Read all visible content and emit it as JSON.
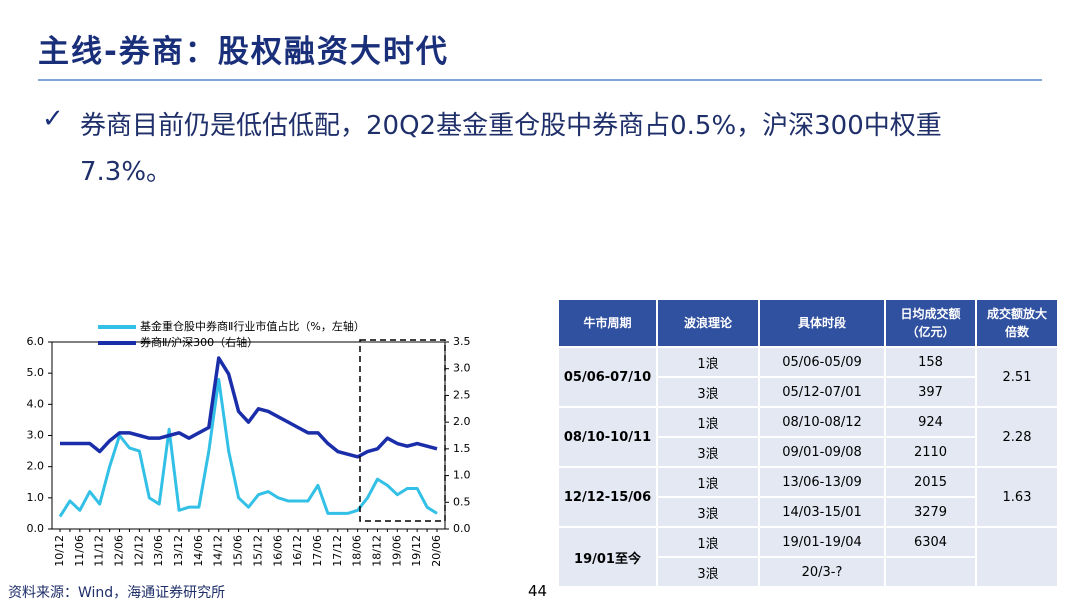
{
  "header": {
    "title": "主线-券商：股权融资大时代"
  },
  "bullet": {
    "text": "券商目前仍是低估低配，20Q2基金重仓股中券商占0.5%，沪深300中权重7.3%。"
  },
  "chart_data": {
    "type": "line",
    "categories": [
      "10/12",
      null,
      "11/06",
      null,
      "11/12",
      null,
      "12/06",
      null,
      "12/12",
      null,
      "13/06",
      null,
      "13/12",
      null,
      "14/06",
      null,
      "14/12",
      null,
      "15/06",
      null,
      "15/12",
      null,
      "16/06",
      null,
      "16/12",
      null,
      "17/06",
      null,
      "17/12",
      null,
      "18/06",
      null,
      "18/12",
      null,
      "19/06",
      null,
      "19/12",
      null,
      "20/06"
    ],
    "series": [
      {
        "name": "基金重仓股中券商Ⅱ行业市值占比（%，左轴）",
        "color": "#33c0e6",
        "values": [
          0.4,
          0.9,
          0.6,
          1.2,
          0.8,
          2.0,
          3.0,
          2.6,
          2.5,
          1.0,
          0.8,
          3.2,
          0.6,
          0.7,
          0.7,
          2.5,
          4.8,
          2.5,
          1.0,
          0.7,
          1.1,
          1.2,
          1.0,
          0.9,
          0.9,
          0.9,
          1.4,
          0.5,
          0.5,
          0.5,
          0.6,
          1.0,
          1.6,
          1.4,
          1.1,
          1.3,
          1.3,
          0.7,
          0.5
        ]
      },
      {
        "name": "券商Ⅱ/沪深300（右轴）",
        "color": "#1a2eaa",
        "axis": "y2",
        "values": [
          1.6,
          1.6,
          1.6,
          1.6,
          1.45,
          1.65,
          1.8,
          1.8,
          1.75,
          1.7,
          1.7,
          1.75,
          1.8,
          1.7,
          1.8,
          1.9,
          3.2,
          2.9,
          2.2,
          2.0,
          2.25,
          2.2,
          2.1,
          2.0,
          1.9,
          1.8,
          1.8,
          1.6,
          1.45,
          1.4,
          1.35,
          1.45,
          1.5,
          1.7,
          1.6,
          1.55,
          1.6,
          1.55,
          1.5
        ]
      }
    ],
    "ylim": [
      0,
      6
    ],
    "yticks": [
      {
        "value": 0,
        "label": "0.0"
      },
      {
        "value": 1,
        "label": "1.0"
      },
      {
        "value": 2,
        "label": "2.0"
      },
      {
        "value": 3,
        "label": "3.0"
      },
      {
        "value": 4,
        "label": "4.0"
      },
      {
        "value": 5,
        "label": "5.0"
      },
      {
        "value": 6,
        "label": "6.0"
      }
    ],
    "y2lim": [
      0,
      3.5
    ],
    "y2ticks": [
      {
        "value": 0,
        "label": "0.0"
      },
      0.5,
      {
        "value": 1,
        "label": "1.0"
      },
      1.5,
      {
        "value": 2,
        "label": "2.0"
      },
      2.5,
      {
        "value": 3,
        "label": "3.0"
      },
      3.5
    ],
    "grid": false
  },
  "table": {
    "header": [
      "牛市周期",
      "波浪理论",
      "具体时段",
      "日均成交额（亿元）",
      "成交额放大倍数"
    ],
    "groups": [
      {
        "period": "05/06-07/10",
        "ratio": 2.51,
        "rows": [
          [
            "1浪",
            "05/06-05/09",
            158
          ],
          [
            "3浪",
            "05/12-07/01",
            397
          ]
        ]
      },
      {
        "period": "08/10-10/11",
        "ratio": 2.28,
        "rows": [
          [
            "1浪",
            "08/10-08/12",
            924
          ],
          [
            "3浪",
            "09/01-09/08",
            2110
          ]
        ]
      },
      {
        "period": "12/12-15/06",
        "ratio": 1.63,
        "rows": [
          [
            "1浪",
            "13/06-13/09",
            2015
          ],
          [
            "3浪",
            "14/03-15/01",
            3279
          ]
        ]
      },
      {
        "period": "19/01至今",
        "rows": [
          [
            "1浪",
            "19/01-19/04",
            6304
          ],
          [
            "3浪",
            "20/3-?"
          ]
        ]
      }
    ]
  },
  "footer": {
    "source": "资料来源：Wind，海通证券研究所",
    "page": "44"
  }
}
